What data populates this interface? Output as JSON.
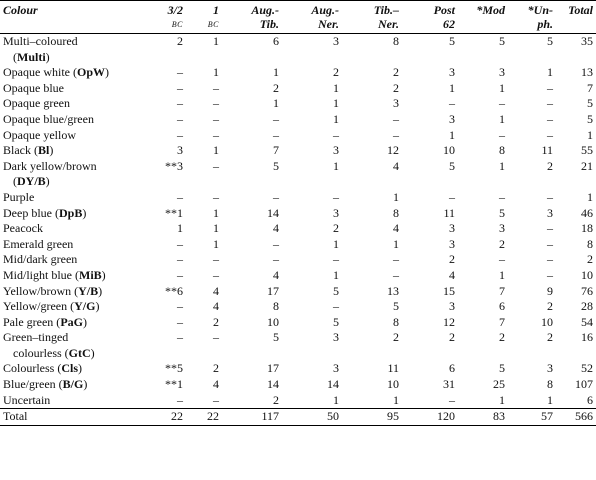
{
  "header": {
    "colour": "Colour",
    "c32": "3/2",
    "c32_sub": "BC",
    "c1": "1",
    "c1_sub": "BC",
    "aug_tib_1": "Aug.-",
    "aug_tib_2": "Tib.",
    "aug_ner_1": "Aug.-",
    "aug_ner_2": "Ner.",
    "tib_ner_1": "Tib.–",
    "tib_ner_2": "Ner.",
    "post_1": "Post",
    "post_2": "62",
    "mod": "*Mod",
    "unph_1": "*Un-",
    "unph_2": "ph.",
    "total": "Total"
  },
  "rows": [
    {
      "line1": "Multi–coloured",
      "line2_pre": "(",
      "line2_abbr": "Multi",
      "line2_post": ")",
      "vals": [
        "2",
        "1",
        "6",
        "3",
        "8",
        "5",
        "5",
        "5",
        "35"
      ]
    },
    {
      "line1": "Opaque white (",
      "abbr": "OpW",
      "post": ")",
      "vals": [
        "–",
        "1",
        "1",
        "2",
        "2",
        "3",
        "3",
        "1",
        "13"
      ]
    },
    {
      "line1": "Opaque blue",
      "vals": [
        "–",
        "–",
        "2",
        "1",
        "2",
        "1",
        "1",
        "–",
        "7"
      ]
    },
    {
      "line1": "Opaque green",
      "vals": [
        "–",
        "–",
        "1",
        "1",
        "3",
        "–",
        "–",
        "–",
        "5"
      ]
    },
    {
      "line1": "Opaque blue/green",
      "vals": [
        "–",
        "–",
        "–",
        "1",
        "–",
        "3",
        "1",
        "–",
        "5"
      ]
    },
    {
      "line1": "Opaque yellow",
      "vals": [
        "–",
        "–",
        "–",
        "–",
        "–",
        "1",
        "–",
        "–",
        "1"
      ]
    },
    {
      "line1": "Black (",
      "abbr": "Bl",
      "post": ")",
      "vals": [
        "3",
        "1",
        "7",
        "3",
        "12",
        "10",
        "8",
        "11",
        "55"
      ]
    },
    {
      "line1": "Dark yellow/brown",
      "line2_pre": "(",
      "line2_abbr": "DY/B",
      "line2_post": ")",
      "vals": [
        "**3",
        "–",
        "5",
        "1",
        "4",
        "5",
        "1",
        "2",
        "21"
      ]
    },
    {
      "line1": "Purple",
      "vals": [
        "–",
        "–",
        "–",
        "–",
        "1",
        "–",
        "–",
        "–",
        "1"
      ]
    },
    {
      "line1": "Deep blue (",
      "abbr": "DpB",
      "post": ")",
      "vals": [
        "**1",
        "1",
        "14",
        "3",
        "8",
        "11",
        "5",
        "3",
        "46"
      ]
    },
    {
      "line1": "Peacock",
      "vals": [
        "1",
        "1",
        "4",
        "2",
        "4",
        "3",
        "3",
        "–",
        "18"
      ]
    },
    {
      "line1": "Emerald green",
      "vals": [
        "–",
        "1",
        "–",
        "1",
        "1",
        "3",
        "2",
        "–",
        "8"
      ]
    },
    {
      "line1": "Mid/dark green",
      "vals": [
        "–",
        "–",
        "–",
        "–",
        "–",
        "2",
        "–",
        "–",
        "2"
      ]
    },
    {
      "line1": "Mid/light blue (",
      "abbr": "MiB",
      "post": ")",
      "vals": [
        "–",
        "–",
        "4",
        "1",
        "–",
        "4",
        "1",
        "–",
        "10"
      ]
    },
    {
      "line1": "Yellow/brown (",
      "abbr": "Y/B",
      "post": ")",
      "vals": [
        "**6",
        "4",
        "17",
        "5",
        "13",
        "15",
        "7",
        "9",
        "76"
      ]
    },
    {
      "line1": "Yellow/green (",
      "abbr": "Y/G",
      "post": ")",
      "vals": [
        "–",
        "4",
        "8",
        "–",
        "5",
        "3",
        "6",
        "2",
        "28"
      ]
    },
    {
      "line1": "Pale green (",
      "abbr": "PaG",
      "post": ")",
      "vals": [
        "–",
        "2",
        "10",
        "5",
        "8",
        "12",
        "7",
        "10",
        "54"
      ]
    },
    {
      "line1": "Green–tinged",
      "line2_pre": "colourless (",
      "line2_abbr": "GtC",
      "line2_post": ")",
      "vals": [
        "–",
        "–",
        "5",
        "3",
        "2",
        "2",
        "2",
        "2",
        "16"
      ]
    },
    {
      "line1": "Colourless (",
      "abbr": "Cls",
      "post": ")",
      "vals": [
        "**5",
        "2",
        "17",
        "3",
        "11",
        "6",
        "5",
        "3",
        "52"
      ]
    },
    {
      "line1": "Blue/green (",
      "abbr": "B/G",
      "post": ")",
      "vals": [
        "**1",
        "4",
        "14",
        "14",
        "10",
        "31",
        "25",
        "8",
        "107"
      ]
    },
    {
      "line1": "Uncertain",
      "vals": [
        "–",
        "–",
        "2",
        "1",
        "1",
        "–",
        "1",
        "1",
        "6"
      ]
    }
  ],
  "total": {
    "label": "Total",
    "vals": [
      "22",
      "22",
      "117",
      "50",
      "95",
      "120",
      "83",
      "57",
      "566"
    ]
  }
}
